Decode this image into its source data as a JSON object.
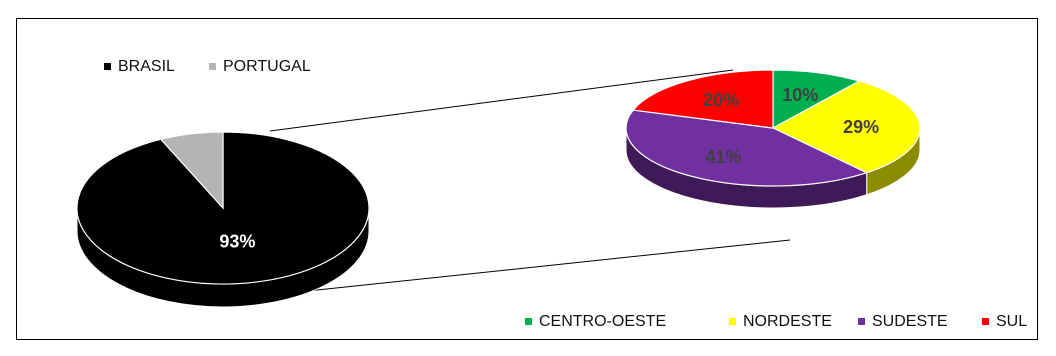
{
  "chart_data": [
    {
      "type": "pie",
      "style": "3d-pie-of-pie",
      "categories": [
        "BRASIL",
        "PORTUGAL"
      ],
      "values": [
        93,
        7
      ],
      "labels": [
        "93%",
        ""
      ],
      "colors": [
        "#000000",
        "#b4b4b4"
      ],
      "legend_position": "top-left",
      "exploded_category": "BRASIL"
    },
    {
      "type": "pie",
      "style": "3d",
      "categories": [
        "CENTRO-OESTE",
        "NORDESTE",
        "SUDESTE",
        "SUL"
      ],
      "values": [
        10,
        29,
        41,
        20
      ],
      "labels": [
        "10%",
        "29%",
        "41%",
        "20%"
      ],
      "colors": [
        "#00b050",
        "#ffff00",
        "#7030a0",
        "#ff0000"
      ],
      "legend_position": "bottom-right"
    }
  ]
}
